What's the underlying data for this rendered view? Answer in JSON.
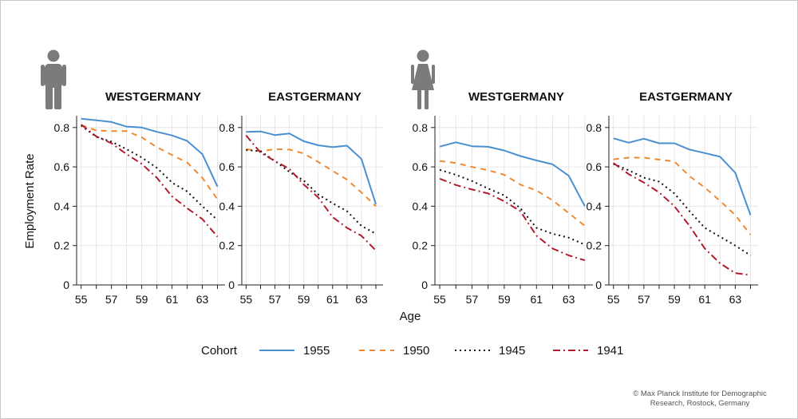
{
  "chart_data": {
    "type": "line",
    "xlabel": "Age",
    "ylabel": "Employment Rate",
    "xlim": [
      54.7,
      64.5
    ],
    "ylim": [
      0,
      0.86
    ],
    "x_ticks": [
      55,
      57,
      59,
      61,
      63
    ],
    "y_ticks": [
      0,
      0.2,
      0.4,
      0.6,
      0.8
    ],
    "y_tick_labels": [
      "0",
      "0.2",
      "0.4",
      "0.6",
      "0.8"
    ],
    "grid": true,
    "x": [
      55,
      56,
      57,
      58,
      59,
      60,
      61,
      62,
      63,
      64
    ],
    "legend": {
      "title": "Cohort",
      "position": "bottom"
    },
    "series_styles": [
      {
        "name": "1955",
        "color": "#4a90d0",
        "dash": ""
      },
      {
        "name": "1950",
        "color": "#f08a32",
        "dash": "7,6"
      },
      {
        "name": "1945",
        "color": "#111111",
        "dash": "2,4"
      },
      {
        "name": "1941",
        "color": "#b01c2e",
        "dash": "9,4,2,4"
      }
    ],
    "groups": [
      {
        "sex": "male",
        "icon": "man-icon"
      },
      {
        "sex": "female",
        "icon": "woman-icon"
      }
    ],
    "panels": [
      {
        "title": "WESTGERMANY",
        "group": "male",
        "series": [
          {
            "name": "1955",
            "values": [
              0.845,
              0.837,
              0.828,
              0.805,
              0.8,
              0.778,
              0.76,
              0.732,
              0.665,
              0.5
            ]
          },
          {
            "name": "1950",
            "values": [
              0.812,
              0.785,
              0.782,
              0.782,
              0.75,
              0.7,
              0.66,
              0.622,
              0.545,
              0.435
            ]
          },
          {
            "name": "1945",
            "values": [
              0.81,
              0.752,
              0.728,
              0.69,
              0.648,
              0.595,
              0.52,
              0.475,
              0.4,
              0.33
            ]
          },
          {
            "name": "1941",
            "values": [
              0.815,
              0.755,
              0.72,
              0.665,
              0.615,
              0.545,
              0.45,
              0.39,
              0.335,
              0.245
            ]
          }
        ]
      },
      {
        "title": "EASTGERMANY",
        "group": "male",
        "series": [
          {
            "name": "1955",
            "values": [
              0.778,
              0.78,
              0.762,
              0.77,
              0.73,
              0.71,
              0.7,
              0.708,
              0.64,
              0.41
            ]
          },
          {
            "name": "1950",
            "values": [
              0.69,
              0.68,
              0.69,
              0.688,
              0.668,
              0.625,
              0.58,
              0.535,
              0.47,
              0.4
            ]
          },
          {
            "name": "1945",
            "values": [
              0.685,
              0.68,
              0.63,
              0.575,
              0.53,
              0.46,
              0.415,
              0.375,
              0.3,
              0.26
            ]
          },
          {
            "name": "1941",
            "values": [
              0.76,
              0.672,
              0.63,
              0.59,
              0.51,
              0.445,
              0.345,
              0.29,
              0.25,
              0.175
            ]
          }
        ]
      },
      {
        "title": "WESTGERMANY",
        "group": "female",
        "series": [
          {
            "name": "1955",
            "values": [
              0.703,
              0.725,
              0.705,
              0.702,
              0.683,
              0.655,
              0.633,
              0.613,
              0.555,
              0.4
            ]
          },
          {
            "name": "1950",
            "values": [
              0.63,
              0.62,
              0.6,
              0.583,
              0.56,
              0.51,
              0.48,
              0.43,
              0.365,
              0.3
            ]
          },
          {
            "name": "1945",
            "values": [
              0.585,
              0.56,
              0.528,
              0.49,
              0.455,
              0.39,
              0.29,
              0.26,
              0.24,
              0.205
            ]
          },
          {
            "name": "1941",
            "values": [
              0.54,
              0.508,
              0.485,
              0.465,
              0.425,
              0.375,
              0.25,
              0.185,
              0.15,
              0.125
            ]
          }
        ]
      },
      {
        "title": "EASTGERMANY",
        "group": "female",
        "series": [
          {
            "name": "1955",
            "values": [
              0.745,
              0.723,
              0.743,
              0.72,
              0.72,
              0.688,
              0.67,
              0.652,
              0.57,
              0.355
            ]
          },
          {
            "name": "1950",
            "values": [
              0.638,
              0.647,
              0.647,
              0.637,
              0.627,
              0.553,
              0.495,
              0.427,
              0.355,
              0.255
            ]
          },
          {
            "name": "1945",
            "values": [
              0.615,
              0.583,
              0.545,
              0.525,
              0.465,
              0.375,
              0.29,
              0.245,
              0.2,
              0.15
            ]
          },
          {
            "name": "1941",
            "values": [
              0.62,
              0.563,
              0.52,
              0.47,
              0.4,
              0.3,
              0.185,
              0.11,
              0.06,
              0.05
            ]
          }
        ]
      }
    ]
  },
  "credit": {
    "line1": "© Max Planck Institute for Demographic",
    "line2": "Research, Rostock, Germany"
  }
}
